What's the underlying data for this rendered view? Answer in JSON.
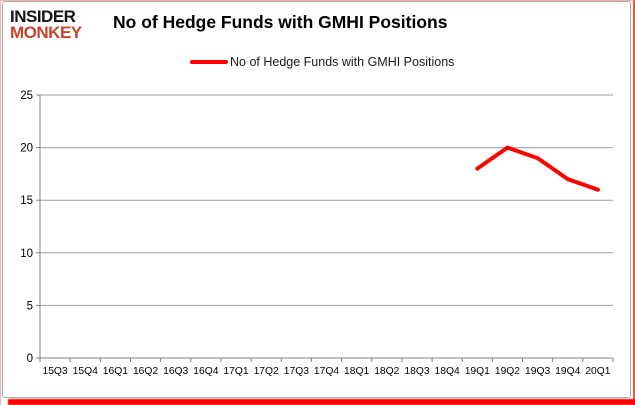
{
  "logo": {
    "line1": "INSIDER",
    "line2": "MONKEY",
    "line1_color": "#141414",
    "line2_color": "#c7452c"
  },
  "header": {
    "title": "No of Hedge Funds with GMHI Positions"
  },
  "legend": {
    "label": "No of Hedge Funds with GMHI Positions",
    "swatch_color": "#fe0000"
  },
  "colors": {
    "series_line": "#fe0000",
    "gridline": "#9b9b9b",
    "axis": "#808080",
    "tick_label": "#000000",
    "card_border": "#ababab",
    "bottom_bar": "#fe0000"
  },
  "chart_data": {
    "type": "line",
    "title": "No of Hedge Funds with GMHI Positions",
    "xlabel": "",
    "ylabel": "",
    "categories": [
      "15Q3",
      "15Q4",
      "16Q1",
      "16Q2",
      "16Q3",
      "16Q4",
      "17Q1",
      "17Q2",
      "17Q3",
      "17Q4",
      "18Q1",
      "18Q2",
      "18Q3",
      "18Q4",
      "19Q1",
      "19Q2",
      "19Q3",
      "19Q4",
      "20Q1"
    ],
    "series": [
      {
        "name": "No of Hedge Funds with GMHI Positions",
        "color": "#fe0000",
        "values": [
          null,
          null,
          null,
          null,
          null,
          null,
          null,
          null,
          null,
          null,
          null,
          null,
          null,
          null,
          18,
          20,
          19,
          17,
          16
        ]
      }
    ],
    "ylim": [
      0,
      25
    ],
    "yticks": [
      0,
      5,
      10,
      15,
      20,
      25
    ],
    "grid": true,
    "legend_position": "top-center"
  }
}
